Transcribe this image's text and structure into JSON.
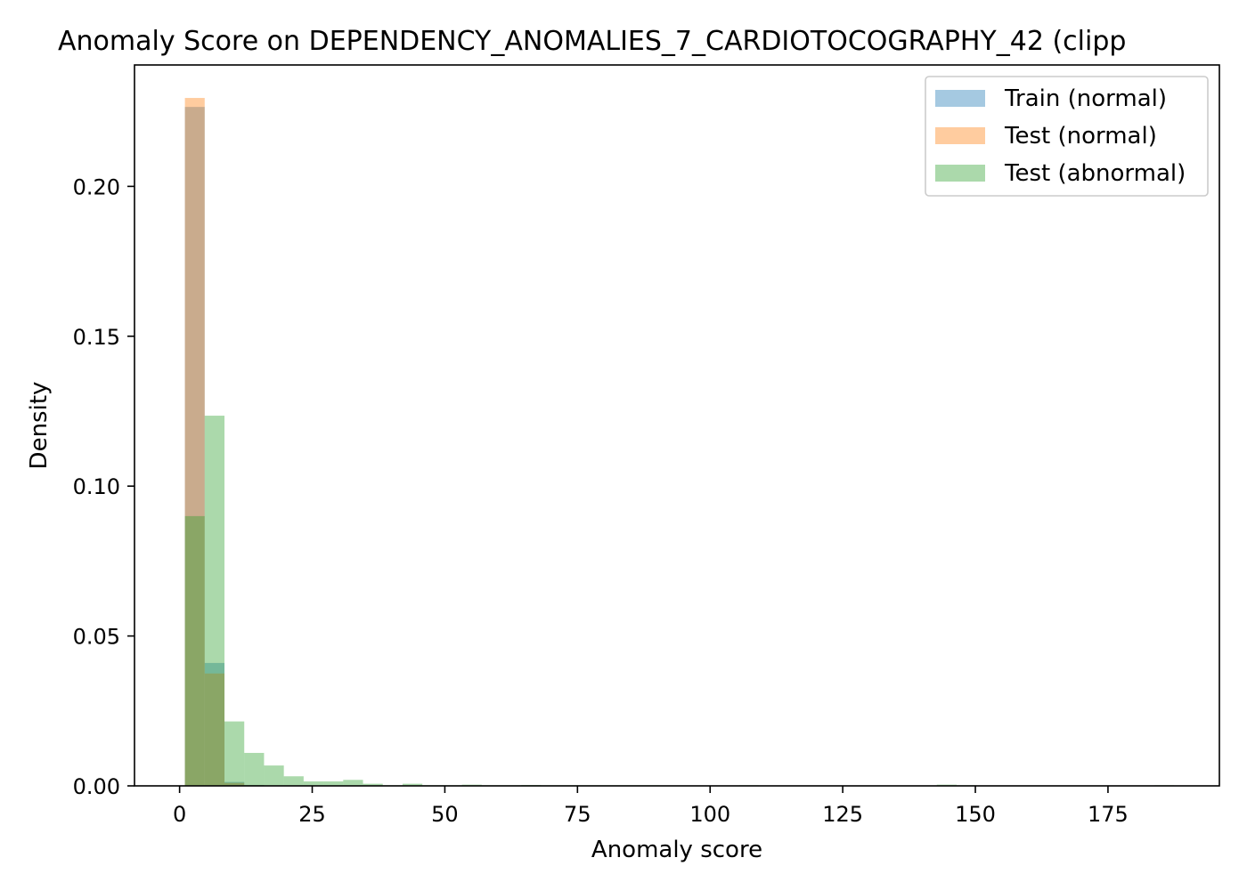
{
  "chart_data": {
    "type": "histogram",
    "title": "Anomaly Score on DEPENDENCY_ANOMALIES_7_CARDIOTOCOGRAPHY_42 (clipp",
    "xlabel": "Anomaly score",
    "ylabel": "Density",
    "xlim": [
      -8.5,
      196
    ],
    "ylim": [
      0,
      0.2405
    ],
    "x_ticks": [
      0,
      25,
      50,
      75,
      100,
      125,
      150,
      175
    ],
    "y_ticks": [
      0.0,
      0.05,
      0.1,
      0.15,
      0.2
    ],
    "y_tick_labels": [
      "0.00",
      "0.05",
      "0.10",
      "0.15",
      "0.20"
    ],
    "grid": false,
    "legend_position": "top-right",
    "bin_start": 1.0,
    "bin_width": 3.73,
    "series": [
      {
        "name": "Train (normal)",
        "color": "#1f77b4",
        "opacity": 0.4,
        "values": [
          0.2265,
          0.041,
          0.0013,
          0.0003,
          0.0001,
          0,
          0,
          0,
          0,
          0,
          0,
          0,
          0,
          0,
          0,
          0,
          0,
          0,
          0,
          0,
          0,
          0,
          0,
          0,
          0,
          0,
          0,
          0,
          0,
          0,
          0,
          0,
          0,
          0,
          0,
          0,
          0,
          0,
          0,
          0,
          0,
          0,
          0,
          0,
          0,
          0,
          0,
          0,
          0,
          0
        ]
      },
      {
        "name": "Test (normal)",
        "color": "#ff7f0e",
        "opacity": 0.4,
        "values": [
          0.2295,
          0.0375,
          0.001,
          0.0002,
          0,
          0,
          0,
          0,
          0,
          0,
          0,
          0,
          0,
          0,
          0,
          0,
          0,
          0,
          0,
          0,
          0,
          0,
          0,
          0,
          0,
          0,
          0,
          0,
          0,
          0,
          0,
          0,
          0,
          0,
          0,
          0,
          0,
          0,
          0,
          0,
          0,
          0,
          0,
          0,
          0,
          0,
          0,
          0,
          0,
          0
        ]
      },
      {
        "name": "Test (abnormal)",
        "color": "#2ca02c",
        "opacity": 0.4,
        "values": [
          0.09,
          0.1235,
          0.0215,
          0.011,
          0.0068,
          0.0032,
          0.0015,
          0.0015,
          0.002,
          0.0007,
          0.0002,
          0.0007,
          0.0002,
          0.0002,
          0.0004,
          0.0002,
          0.0002,
          0.0003,
          0.0002,
          0.0002,
          0.0002,
          0.0002,
          0.0002,
          0.0002,
          0,
          0,
          0,
          0,
          0.0002,
          0,
          0,
          0,
          0,
          0,
          0,
          0,
          0,
          0,
          0.0004,
          0.0002,
          0,
          0,
          0,
          0,
          0,
          0,
          0,
          0,
          0,
          0.0002
        ]
      }
    ]
  }
}
